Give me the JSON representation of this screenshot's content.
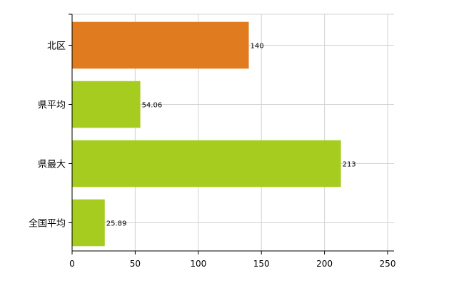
{
  "chart_data": {
    "type": "bar",
    "orientation": "horizontal",
    "categories": [
      "北区",
      "県平均",
      "県最大",
      "全国平均"
    ],
    "values": [
      140,
      54.06,
      213,
      25.89
    ],
    "value_labels": [
      "140",
      "54.06",
      "213",
      "25.89"
    ],
    "bar_colors": [
      "#e07b20",
      "#a5cc1f",
      "#a5cc1f",
      "#a5cc1f"
    ],
    "xlim": [
      0,
      250
    ],
    "x_ticks": [
      0,
      50,
      100,
      150,
      200,
      250
    ],
    "grid": true,
    "legend": "none",
    "title": "",
    "xlabel": "",
    "ylabel": ""
  }
}
